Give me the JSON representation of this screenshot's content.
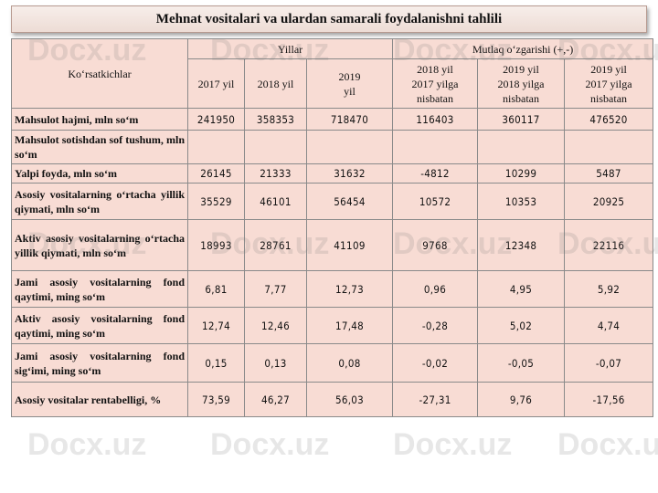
{
  "title": "Mehnat vositalari va ulardan samarali foydalanishni tahlili",
  "watermark": "Docx.uz",
  "header": {
    "indicator_label": "Ko‘rsatkichlar",
    "group_years": "Yillar",
    "group_change": "Mutlaq o‘zgarishi (+,-)",
    "years": [
      "2017 yil",
      "2018 yil",
      "2019\nyil"
    ],
    "changes": [
      "2018 yil\n2017 yilga\nnisbatan",
      "2019 yil\n2018 yilga\nnisbatan",
      "2019 yil\n2017 yilga\nnisbatan"
    ]
  },
  "rows": [
    {
      "label": "Mahsulot hajmi, mln so‘m",
      "values": [
        "241950",
        "358353",
        "718470",
        "116403",
        "360117",
        "476520"
      ]
    },
    {
      "label": "Mahsulot sotishdan sof tushum, mln so‘m",
      "values": [
        "",
        "",
        "",
        "",
        "",
        ""
      ]
    },
    {
      "label": "Yalpi foyda, mln so‘m",
      "values": [
        "26145",
        "21333",
        "31632",
        "-4812",
        "10299",
        "5487"
      ]
    },
    {
      "label": "Asosiy vositalarning o‘rtacha yillik qiymati, mln so‘m",
      "values": [
        "35529",
        "46101",
        "56454",
        "10572",
        "10353",
        "20925"
      ]
    },
    {
      "label": "Aktiv asosiy vositalarning o‘rtacha yillik qiymati, mln so‘m",
      "values": [
        "18993",
        "28761",
        "41109",
        "9768",
        "12348",
        "22116"
      ]
    },
    {
      "label": "Jami asosiy vositalarning fond qaytimi, ming so‘m",
      "values": [
        "6,81",
        "7,77",
        "12,73",
        "0,96",
        "4,95",
        "5,92"
      ]
    },
    {
      "label": "Aktiv asosiy vositalarning fond qaytimi, ming so‘m",
      "values": [
        "12,74",
        "12,46",
        "17,48",
        "-0,28",
        "5,02",
        "4,74"
      ]
    },
    {
      "label": "Jami asosiy vositalarning fond sig‘imi, ming so‘m",
      "values": [
        "0,15",
        "0,13",
        "0,08",
        "-0,02",
        "-0,05",
        "-0,07"
      ]
    },
    {
      "label": "Asosiy vositalar rentabelligi, %",
      "values": [
        "73,59",
        "46,27",
        "56,03",
        "-27,31",
        "9,76",
        "-17,56"
      ]
    }
  ]
}
